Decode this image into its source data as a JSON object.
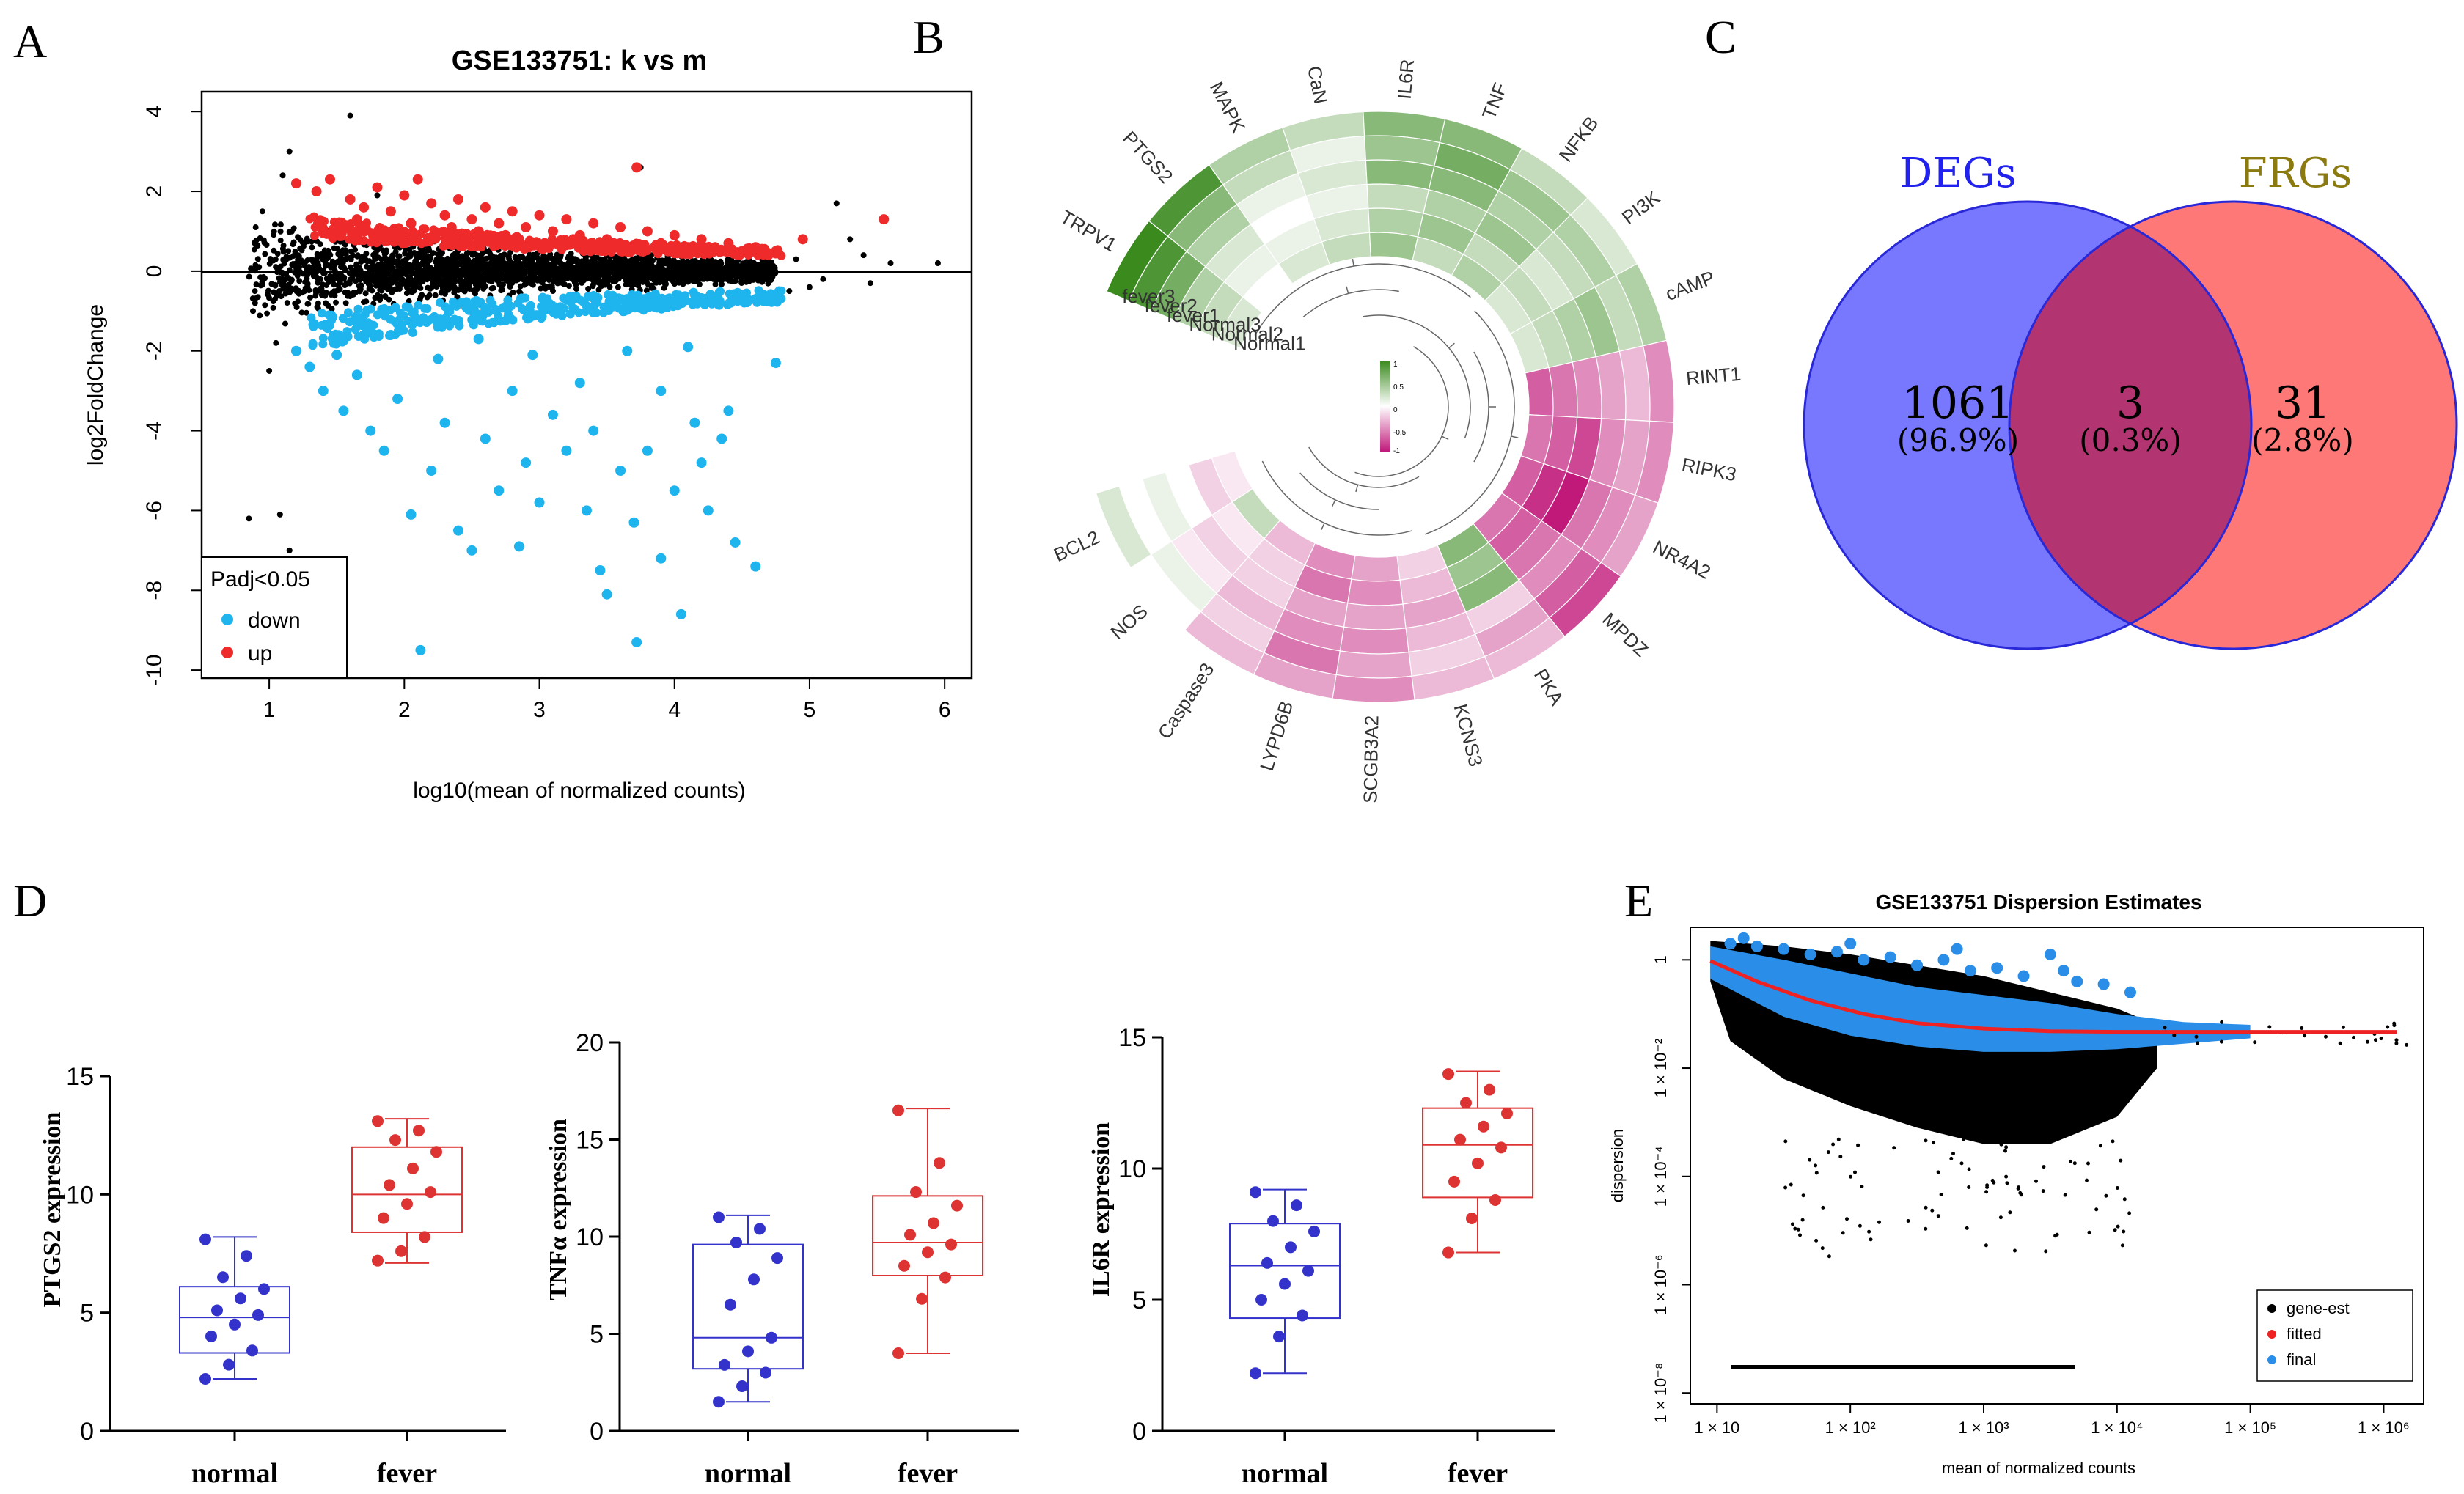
{
  "panel_labels": [
    "A",
    "B",
    "C",
    "D",
    "E"
  ],
  "colors": {
    "up": "#ee2a2a",
    "down": "#1eb4ee",
    "ns": "#000000",
    "heat_high": "#3a8a1e",
    "heat_low": "#c0197a",
    "venn_left": "#7878ff",
    "venn_right": "#ff7878",
    "venn_overlap": "#b23470",
    "box_normal": "#3333cc",
    "box_fever": "#dd3333",
    "final": "#2a8ee8",
    "fitted": "#ee2222"
  },
  "chart_data": [
    {
      "id": "A",
      "type": "scatter",
      "title": "GSE133751: k vs m",
      "xlabel": "log10(mean of normalized counts)",
      "ylabel": "log2FoldChange",
      "xlim": [
        0.5,
        6.2
      ],
      "ylim": [
        -10.2,
        4.5
      ],
      "xticks": [
        "1",
        "2",
        "3",
        "4",
        "5",
        "6"
      ],
      "yticks": [
        "4",
        "2",
        "0",
        "-2",
        "-4",
        "-6",
        "-8",
        "-10"
      ],
      "legend": {
        "title": "Padj<0.05",
        "items": [
          "down",
          "up"
        ],
        "position": "bottom-left"
      },
      "series": [
        {
          "name": "up",
          "points": [
            [
              1.2,
              2.2
            ],
            [
              1.35,
              2.0
            ],
            [
              1.45,
              2.3
            ],
            [
              1.6,
              1.8
            ],
            [
              1.7,
              1.6
            ],
            [
              1.8,
              2.1
            ],
            [
              1.9,
              1.5
            ],
            [
              2.0,
              1.9
            ],
            [
              2.1,
              2.3
            ],
            [
              2.2,
              1.7
            ],
            [
              2.3,
              1.4
            ],
            [
              2.4,
              1.8
            ],
            [
              2.5,
              1.3
            ],
            [
              2.6,
              1.6
            ],
            [
              2.7,
              1.2
            ],
            [
              2.8,
              1.5
            ],
            [
              2.9,
              1.1
            ],
            [
              3.0,
              1.4
            ],
            [
              3.1,
              1.0
            ],
            [
              3.2,
              1.3
            ],
            [
              3.3,
              0.9
            ],
            [
              3.4,
              1.2
            ],
            [
              3.5,
              0.8
            ],
            [
              3.6,
              1.1
            ],
            [
              3.72,
              2.6
            ],
            [
              3.8,
              1.0
            ],
            [
              3.9,
              0.7
            ],
            [
              4.0,
              0.9
            ],
            [
              4.1,
              0.6
            ],
            [
              4.2,
              0.8
            ],
            [
              4.3,
              0.6
            ],
            [
              4.4,
              0.7
            ],
            [
              4.5,
              0.5
            ],
            [
              4.6,
              0.6
            ],
            [
              4.75,
              0.5
            ],
            [
              4.95,
              0.8
            ],
            [
              5.55,
              1.3
            ],
            [
              2.35,
              1.1
            ],
            [
              2.75,
              0.9
            ],
            [
              3.25,
              0.8
            ],
            [
              3.55,
              0.7
            ],
            [
              3.95,
              0.5
            ],
            [
              2.05,
              1.2
            ],
            [
              1.65,
              1.3
            ],
            [
              4.35,
              0.5
            ],
            [
              2.55,
              1.0
            ],
            [
              3.05,
              0.6
            ],
            [
              1.95,
              0.9
            ]
          ]
        },
        {
          "name": "down",
          "points": [
            [
              1.2,
              -2.0
            ],
            [
              1.3,
              -2.4
            ],
            [
              1.4,
              -3.0
            ],
            [
              1.55,
              -3.5
            ],
            [
              1.65,
              -2.6
            ],
            [
              1.75,
              -4.0
            ],
            [
              1.85,
              -4.5
            ],
            [
              1.95,
              -3.2
            ],
            [
              2.05,
              -6.1
            ],
            [
              2.12,
              -9.5
            ],
            [
              2.2,
              -5.0
            ],
            [
              2.3,
              -3.8
            ],
            [
              2.4,
              -6.5
            ],
            [
              2.5,
              -7.0
            ],
            [
              2.6,
              -4.2
            ],
            [
              2.7,
              -5.5
            ],
            [
              2.8,
              -3.0
            ],
            [
              2.9,
              -4.8
            ],
            [
              3.0,
              -5.8
            ],
            [
              3.1,
              -3.6
            ],
            [
              3.2,
              -4.5
            ],
            [
              3.3,
              -2.8
            ],
            [
              3.4,
              -4.0
            ],
            [
              3.45,
              -7.5
            ],
            [
              3.5,
              -8.1
            ],
            [
              3.6,
              -5.0
            ],
            [
              3.7,
              -6.3
            ],
            [
              3.72,
              -9.3
            ],
            [
              3.8,
              -4.5
            ],
            [
              3.9,
              -7.2
            ],
            [
              4.0,
              -5.5
            ],
            [
              4.05,
              -8.6
            ],
            [
              4.15,
              -3.8
            ],
            [
              4.25,
              -6.0
            ],
            [
              4.35,
              -4.2
            ],
            [
              4.45,
              -6.8
            ],
            [
              4.6,
              -7.4
            ],
            [
              4.75,
              -2.3
            ],
            [
              3.9,
              -3.0
            ],
            [
              4.2,
              -4.8
            ],
            [
              4.4,
              -3.5
            ],
            [
              2.85,
              -6.9
            ],
            [
              3.35,
              -6.0
            ],
            [
              1.5,
              -2.1
            ],
            [
              2.25,
              -2.2
            ],
            [
              2.95,
              -2.1
            ],
            [
              3.65,
              -2.0
            ],
            [
              4.1,
              -1.9
            ],
            [
              1.9,
              -1.6
            ],
            [
              2.55,
              -1.7
            ]
          ]
        },
        {
          "name": "ns",
          "points": [
            [
              0.85,
              -6.2
            ],
            [
              1.08,
              -6.1
            ],
            [
              1.0,
              -8.0
            ],
            [
              1.15,
              3.0
            ],
            [
              1.6,
              3.9
            ],
            [
              1.8,
              1.9
            ],
            [
              3.75,
              2.6
            ],
            [
              5.2,
              1.7
            ],
            [
              5.4,
              0.4
            ],
            [
              5.6,
              0.2
            ],
            [
              5.95,
              0.2
            ],
            [
              5.0,
              -0.4
            ],
            [
              5.3,
              0.8
            ],
            [
              5.45,
              -0.3
            ],
            [
              4.85,
              -0.5
            ],
            [
              4.9,
              0.3
            ],
            [
              1.0,
              -2.5
            ],
            [
              0.95,
              1.5
            ],
            [
              1.05,
              -1.8
            ],
            [
              1.1,
              2.4
            ],
            [
              5.1,
              -0.2
            ],
            [
              0.88,
              -1.0
            ],
            [
              0.9,
              1.1
            ],
            [
              1.15,
              -7.0
            ]
          ]
        }
      ]
    },
    {
      "id": "B",
      "type": "heatmap",
      "layout": "circular",
      "genes": [
        "TRPV1",
        "PTGS2",
        "MAPK",
        "CaN",
        "IL6R",
        "TNF",
        "NFKB",
        "PI3K",
        "cAMP",
        "RINT1",
        "RIPK3",
        "NR4A2",
        "MPDZ",
        "PKA",
        "KCNS3",
        "SCGB3A2",
        "LYPD6B",
        "Caspase3",
        "NOS",
        "BCL2"
      ],
      "samples": [
        "Normal1",
        "Normal2",
        "Normal3",
        "fever1",
        "fever2",
        "fever3"
      ],
      "legend_ticks": [
        "1",
        "0.5",
        "0",
        "-0.5",
        "-1"
      ],
      "values": [
        [
          0.2,
          0.3,
          0.4,
          0.7,
          0.9,
          1.0
        ],
        [
          0.0,
          0.1,
          0.2,
          0.4,
          0.6,
          0.9
        ],
        [
          0.2,
          0.1,
          0.0,
          0.1,
          0.3,
          0.4
        ],
        [
          0.3,
          0.2,
          0.1,
          0.2,
          0.1,
          0.3
        ],
        [
          0.5,
          0.4,
          0.3,
          0.6,
          0.5,
          0.6
        ],
        [
          0.3,
          0.5,
          0.4,
          0.6,
          0.7,
          0.6
        ],
        [
          0.4,
          0.3,
          0.5,
          0.4,
          0.5,
          0.3
        ],
        [
          0.2,
          0.3,
          0.2,
          0.3,
          0.4,
          0.2
        ],
        [
          0.2,
          0.3,
          0.4,
          0.5,
          0.3,
          0.4
        ],
        [
          -0.7,
          -0.6,
          -0.5,
          -0.4,
          -0.3,
          -0.5
        ],
        [
          -0.6,
          -0.7,
          -0.8,
          -0.5,
          -0.4,
          -0.5
        ],
        [
          -0.7,
          -0.9,
          -1.0,
          -0.6,
          -0.5,
          -0.4
        ],
        [
          -0.6,
          -0.7,
          -0.6,
          -0.5,
          -0.7,
          -0.8
        ],
        [
          0.6,
          0.5,
          0.6,
          -0.2,
          -0.4,
          -0.3
        ],
        [
          -0.2,
          -0.3,
          -0.4,
          -0.3,
          -0.2,
          -0.3
        ],
        [
          -0.4,
          -0.5,
          -0.4,
          -0.5,
          -0.4,
          -0.5
        ],
        [
          -0.5,
          -0.6,
          -0.4,
          -0.5,
          -0.6,
          -0.4
        ],
        [
          -0.3,
          -0.2,
          -0.2,
          -0.3,
          -0.2,
          -0.3
        ],
        [
          0.3,
          -0.1,
          -0.2,
          -0.1,
          0.1,
          0.0
        ],
        [
          -0.1,
          -0.2,
          0.0,
          0.1,
          0.0,
          0.2
        ]
      ]
    },
    {
      "id": "C",
      "type": "venn",
      "sets": [
        "DEGs",
        "FRGs"
      ],
      "regions": [
        {
          "name": "DEGs only",
          "count": "1061",
          "percent": "(96.9%)"
        },
        {
          "name": "overlap",
          "count": "3",
          "percent": "(0.3%)"
        },
        {
          "name": "FRGs only",
          "count": "31",
          "percent": "(2.8%)"
        }
      ]
    },
    {
      "id": "D",
      "type": "box",
      "categories": [
        "normal",
        "fever"
      ],
      "panels": [
        {
          "ylabel": "PTGS2 expression",
          "ylim": [
            0,
            15
          ],
          "yticks": [
            "0",
            "5",
            "10",
            "15"
          ],
          "boxes": [
            {
              "min": 2.2,
              "q1": 3.3,
              "median": 4.8,
              "q3": 6.1,
              "max": 8.2,
              "points": [
                2.2,
                2.8,
                3.4,
                4.0,
                4.5,
                4.9,
                5.1,
                5.6,
                6.0,
                6.5,
                7.4,
                8.1
              ]
            },
            {
              "min": 7.1,
              "q1": 8.4,
              "median": 10.0,
              "q3": 12.0,
              "max": 13.2,
              "points": [
                7.2,
                7.6,
                8.2,
                9.0,
                9.6,
                10.1,
                10.4,
                11.1,
                11.8,
                12.3,
                12.7,
                13.1
              ]
            }
          ]
        },
        {
          "ylabel": "TNFα expression",
          "ylim": [
            0,
            20
          ],
          "yticks": [
            "0",
            "5",
            "10",
            "15",
            "20"
          ],
          "boxes": [
            {
              "min": 1.5,
              "q1": 3.2,
              "median": 4.8,
              "q3": 9.6,
              "max": 11.1,
              "points": [
                1.5,
                2.3,
                3.0,
                3.4,
                4.1,
                4.8,
                6.5,
                7.8,
                8.9,
                9.7,
                10.4,
                11.0
              ]
            },
            {
              "min": 4.0,
              "q1": 8.0,
              "median": 9.7,
              "q3": 12.1,
              "max": 16.6,
              "points": [
                4.0,
                6.8,
                7.9,
                8.5,
                9.2,
                9.6,
                10.1,
                10.7,
                11.6,
                12.3,
                13.8,
                16.5
              ]
            }
          ]
        },
        {
          "ylabel": "IL6R expression",
          "ylim": [
            0,
            15
          ],
          "yticks": [
            "0",
            "5",
            "10",
            "15"
          ],
          "boxes": [
            {
              "min": 2.2,
              "q1": 4.3,
              "median": 6.3,
              "q3": 7.9,
              "max": 9.2,
              "points": [
                2.2,
                3.6,
                4.4,
                5.0,
                5.6,
                6.1,
                6.4,
                7.0,
                7.6,
                8.0,
                8.6,
                9.1
              ]
            },
            {
              "min": 6.8,
              "q1": 8.9,
              "median": 10.9,
              "q3": 12.3,
              "max": 13.7,
              "points": [
                6.8,
                8.1,
                8.8,
                9.5,
                10.2,
                10.8,
                11.1,
                11.6,
                12.1,
                12.5,
                13.0,
                13.6
              ]
            }
          ]
        }
      ]
    },
    {
      "id": "E",
      "type": "scatter",
      "title": "GSE133751 Dispersion Estimates",
      "xlabel": "mean of normalized counts",
      "ylabel": "dispersion",
      "x_scale": "log10",
      "y_scale": "log10",
      "xlim_log10": [
        0.8,
        6.3
      ],
      "ylim_log10": [
        -8.2,
        0.6
      ],
      "xticks": [
        "1 × 10",
        "1 × 10²",
        "1 × 10³",
        "1 × 10⁴",
        "1 × 10⁵",
        "1 × 10⁶"
      ],
      "yticks": [
        "1",
        "1 × 10⁻²",
        "1 × 10⁻⁴",
        "1 × 10⁻⁶",
        "1 × 10⁻⁸"
      ],
      "legend": {
        "items": [
          "gene-est",
          "fitted",
          "final"
        ],
        "position": "bottom-right"
      },
      "fitted_curve": [
        [
          0.95,
          -0.02
        ],
        [
          1.3,
          -0.4
        ],
        [
          1.7,
          -0.75
        ],
        [
          2.1,
          -1.0
        ],
        [
          2.5,
          -1.17
        ],
        [
          3.0,
          -1.27
        ],
        [
          3.5,
          -1.32
        ],
        [
          4.0,
          -1.33
        ],
        [
          5.0,
          -1.33
        ],
        [
          6.1,
          -1.33
        ]
      ],
      "final_outliers": [
        [
          1.1,
          0.3
        ],
        [
          1.3,
          0.25
        ],
        [
          1.5,
          0.2
        ],
        [
          1.7,
          0.1
        ],
        [
          1.9,
          0.15
        ],
        [
          2.1,
          0.0
        ],
        [
          2.3,
          0.05
        ],
        [
          2.5,
          -0.1
        ],
        [
          2.7,
          0.0
        ],
        [
          2.9,
          -0.2
        ],
        [
          3.1,
          -0.15
        ],
        [
          3.3,
          -0.3
        ],
        [
          3.5,
          0.1
        ],
        [
          3.7,
          -0.4
        ],
        [
          3.9,
          -0.45
        ],
        [
          4.1,
          -0.6
        ],
        [
          1.2,
          0.4
        ],
        [
          2.0,
          0.3
        ],
        [
          2.8,
          0.2
        ],
        [
          3.6,
          -0.2
        ]
      ]
    }
  ]
}
